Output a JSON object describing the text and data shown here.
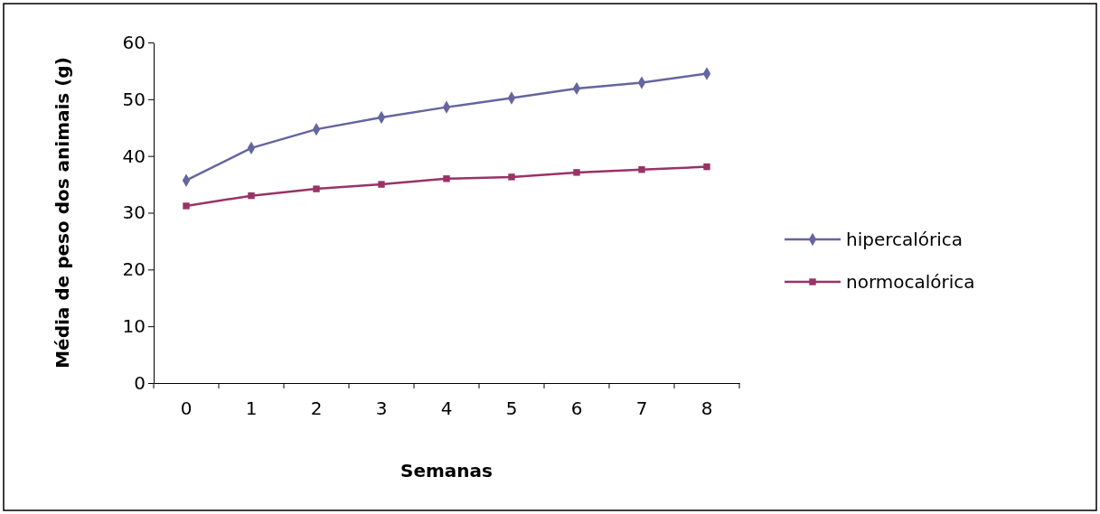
{
  "chart_data": {
    "type": "line",
    "xlabel": "Semanas",
    "ylabel": "Média de peso dos animais (g)",
    "categories": [
      "0",
      "1",
      "2",
      "3",
      "4",
      "5",
      "6",
      "7",
      "8"
    ],
    "ylim": [
      0,
      60
    ],
    "yticks": [
      0,
      10,
      20,
      30,
      40,
      50,
      60
    ],
    "grid": false,
    "legend": "right",
    "series": [
      {
        "name": "hipercalórica",
        "color": "#65659f",
        "marker": "diamond",
        "values": [
          35.7,
          41.4,
          44.7,
          46.8,
          48.6,
          50.2,
          51.9,
          52.9,
          54.5
        ]
      },
      {
        "name": "normocalórica",
        "color": "#993366",
        "marker": "square",
        "values": [
          31.2,
          33.0,
          34.2,
          35.0,
          36.0,
          36.3,
          37.1,
          37.6,
          38.1
        ]
      }
    ]
  }
}
